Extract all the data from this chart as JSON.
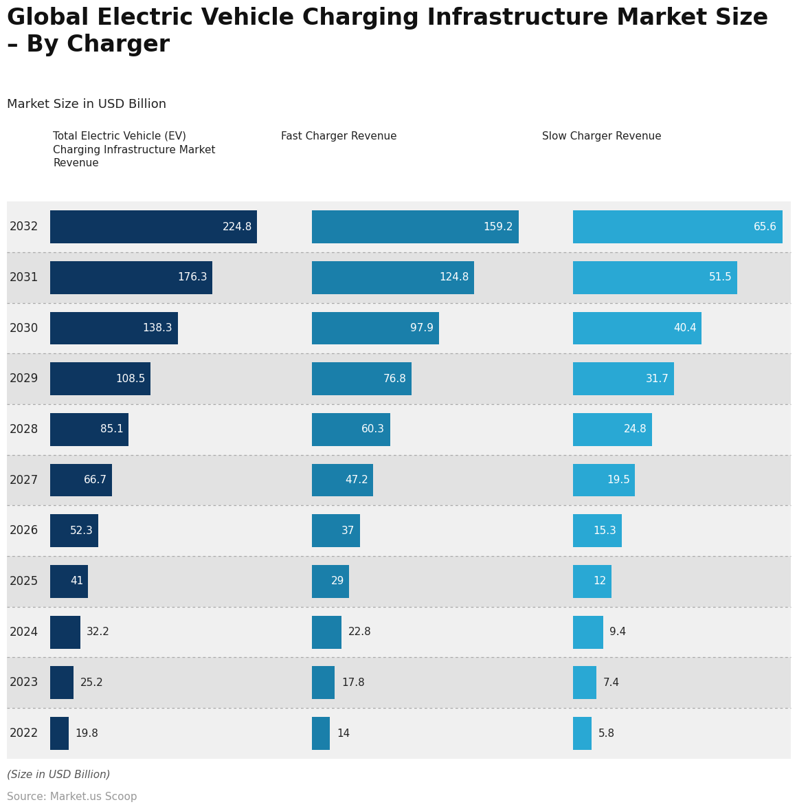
{
  "title": "Global Electric Vehicle Charging Infrastructure Market Size\n– By Charger",
  "subtitle": "Market Size in USD Billion",
  "footer_note": "(Size in USD Billion)",
  "source": "Source: Market.us Scoop",
  "years": [
    2032,
    2031,
    2030,
    2029,
    2028,
    2027,
    2026,
    2025,
    2024,
    2023,
    2022
  ],
  "total_values": [
    224.8,
    176.3,
    138.3,
    108.5,
    85.1,
    66.7,
    52.3,
    41,
    32.2,
    25.2,
    19.8
  ],
  "fast_values": [
    159.2,
    124.8,
    97.9,
    76.8,
    60.3,
    47.2,
    37,
    29,
    22.8,
    17.8,
    14
  ],
  "slow_values": [
    65.6,
    51.5,
    40.4,
    31.7,
    24.8,
    19.5,
    15.3,
    12,
    9.4,
    7.4,
    5.8
  ],
  "col_headers": [
    "Total Electric Vehicle (EV)\nCharging Infrastructure Market\nRevenue",
    "Fast Charger Revenue",
    "Slow Charger Revenue"
  ],
  "color_total": "#0d3660",
  "color_fast": "#1a7faa",
  "color_slow": "#29a8d4",
  "color_bg_light": "#f0f0f0",
  "color_bg_dark": "#e2e2e2",
  "background_color": "#ffffff",
  "max_total": 224.8,
  "max_fast": 159.2,
  "max_slow": 65.6,
  "title_fontsize": 24,
  "subtitle_fontsize": 13,
  "header_fontsize": 11,
  "label_fontsize": 11,
  "year_fontsize": 12
}
